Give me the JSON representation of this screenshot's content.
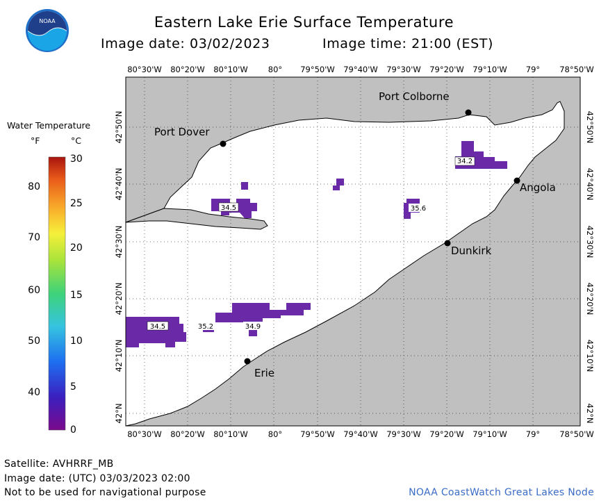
{
  "header": {
    "title": "Eastern Lake Erie Surface Temperature",
    "image_date_label": "Image date: 03/02/2023",
    "image_time_label": "Image time: 21:00 (EST)"
  },
  "logo": {
    "text": "NOAA"
  },
  "longitude_ticks": [
    "80°30'W",
    "80°20'W",
    "80°10'W",
    "80°",
    "79°50'W",
    "79°40'W",
    "79°30'W",
    "79°20'W",
    "79°10'W",
    "79°",
    "78°50'W"
  ],
  "latitude_ticks": [
    "42°50'N",
    "42°40'N",
    "42°30'N",
    "42°20'N",
    "42°10'N",
    "42°N"
  ],
  "places": {
    "port_colborne": "Port Colborne",
    "port_dover": "Port Dover",
    "angola": "Angola",
    "dunkirk": "Dunkirk",
    "erie": "Erie"
  },
  "temperature_labels": [
    "34.2",
    "34.5",
    "35.6",
    "34.5",
    "35.2",
    "34.9"
  ],
  "legend": {
    "title": "Water Temperature",
    "unit_f": "°F",
    "unit_c": "°C",
    "f_ticks": [
      "80",
      "70",
      "60",
      "50",
      "40"
    ],
    "c_ticks": [
      "30",
      "25",
      "20",
      "15",
      "10",
      "5",
      "0"
    ]
  },
  "footer": {
    "satellite": "Satellite: AVHRRF_MB",
    "utc_date": "Image date: (UTC) 03/03/2023  02:00",
    "disclaimer": "Not to be used for navigational purpose",
    "credit": "NOAA CoastWatch Great Lakes Node"
  },
  "colors": {
    "land": "#c0c0c0",
    "water": "#ffffff",
    "cold_water": "#6a2aa8",
    "credit_text": "#3b6cc7"
  }
}
